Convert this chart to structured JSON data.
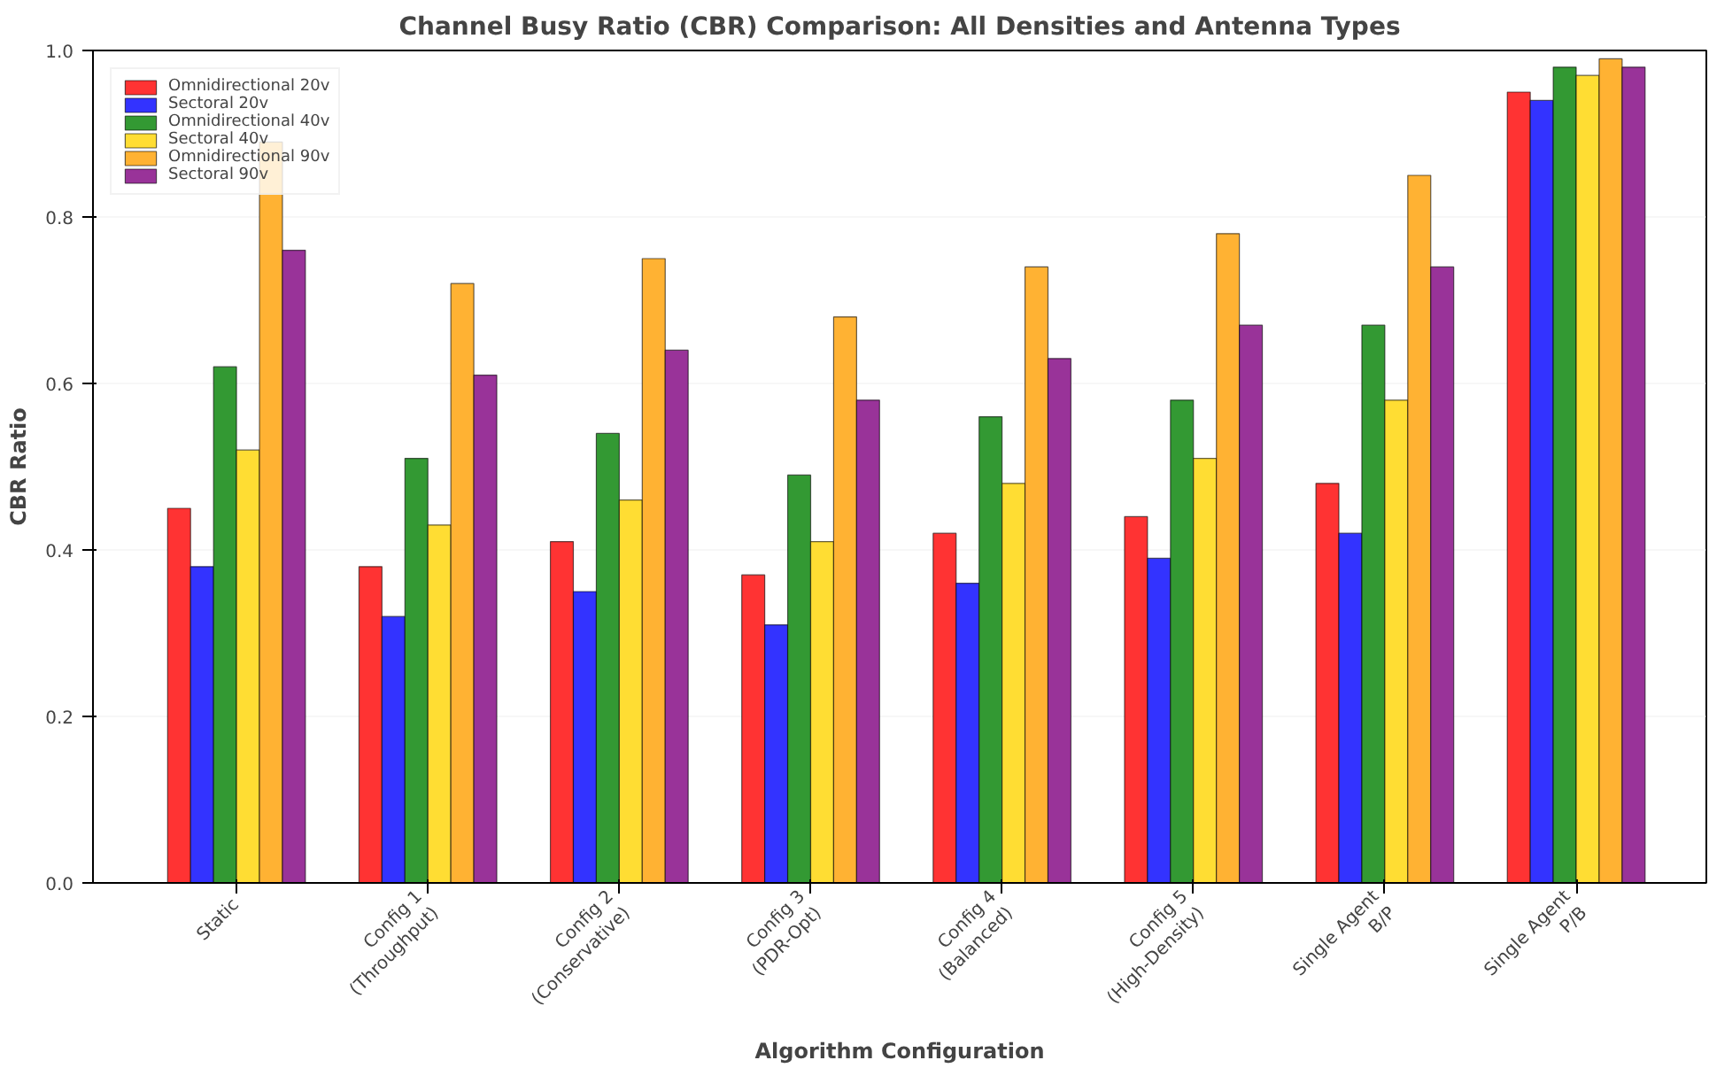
{
  "chart_data": {
    "type": "bar",
    "title": "Channel Busy Ratio (CBR) Comparison: All Densities and Antenna Types",
    "xlabel": "Algorithm Configuration",
    "ylabel": "CBR Ratio",
    "categories": [
      "Static",
      "Config 1\n(Throughput)",
      "Config 2\n(Conservative)",
      "Config 3\n(PDR-Opt)",
      "Config 4\n(Balanced)",
      "Config 5\n(High-Density)",
      "Single Agent\nB/P",
      "Single Agent\nP/B"
    ],
    "series": [
      {
        "name": "Omnidirectional 20v",
        "color": "#ff3333",
        "values": [
          0.45,
          0.38,
          0.41,
          0.37,
          0.42,
          0.44,
          0.48,
          0.95
        ]
      },
      {
        "name": "Sectoral 20v",
        "color": "#3333ff",
        "values": [
          0.38,
          0.32,
          0.35,
          0.31,
          0.36,
          0.39,
          0.42,
          0.94
        ]
      },
      {
        "name": "Omnidirectional 40v",
        "color": "#339933",
        "values": [
          0.62,
          0.51,
          0.54,
          0.49,
          0.56,
          0.58,
          0.67,
          0.98
        ]
      },
      {
        "name": "Sectoral 40v",
        "color": "#ffdd33",
        "values": [
          0.52,
          0.43,
          0.46,
          0.41,
          0.48,
          0.51,
          0.58,
          0.97
        ]
      },
      {
        "name": "Omnidirectional 90v",
        "color": "#ffb233",
        "values": [
          0.89,
          0.72,
          0.75,
          0.68,
          0.74,
          0.78,
          0.85,
          0.99
        ]
      },
      {
        "name": "Sectoral 90v",
        "color": "#993399",
        "values": [
          0.76,
          0.61,
          0.64,
          0.58,
          0.63,
          0.67,
          0.74,
          0.98
        ]
      }
    ],
    "ylim": [
      0,
      1.0
    ],
    "yticks": [
      {
        "value": 0,
        "label": "0.0"
      },
      {
        "value": 0.2,
        "label": "0.2"
      },
      {
        "value": 0.4,
        "label": "0.4"
      },
      {
        "value": 0.6,
        "label": "0.6"
      },
      {
        "value": 0.8,
        "label": "0.8"
      },
      {
        "value": 1.0,
        "label": "1.0"
      }
    ],
    "grid": "y",
    "legend": "top left"
  }
}
